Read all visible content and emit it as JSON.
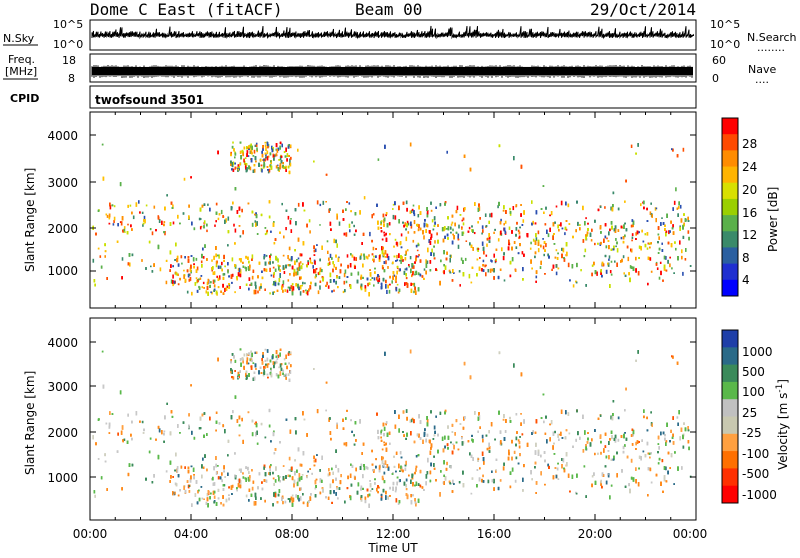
{
  "header": {
    "title": "Dome C East (fitACF)",
    "beam": "Beam 00",
    "date": "29/Oct/2014"
  },
  "noise_panel": {
    "left_label": "N.Sky",
    "right_label": "N.Search",
    "right_dots": "........",
    "left_ticks": [
      "10^5",
      "10^0"
    ],
    "right_ticks": [
      "10^5",
      "10^0"
    ]
  },
  "freq_panel": {
    "left_label": "Freq.",
    "left_unit": "[MHz]",
    "left_ticks": [
      "18",
      "8"
    ],
    "right_label": "Nave",
    "right_dots": "....",
    "right_ticks": [
      "60",
      "0"
    ]
  },
  "cpid_panel": {
    "label": "CPID",
    "text": "twofsound 3501"
  },
  "x_axis": {
    "label": "Time UT",
    "ticks": [
      "00:00",
      "04:00",
      "08:00",
      "12:00",
      "16:00",
      "20:00",
      "00:00"
    ]
  },
  "chart_data": [
    {
      "type": "heatmap",
      "name": "power",
      "ylabel": "Slant Range [km]",
      "yticks": [
        "4000",
        "3000",
        "2000",
        "1000"
      ],
      "ylim": [
        200,
        4500
      ],
      "xlim_hours": [
        0,
        24
      ],
      "colorbar_label": "Power [dB]",
      "colorbar_ticks": [
        "28",
        "24",
        "20",
        "16",
        "12",
        "8",
        "4"
      ],
      "colorbar_colors": [
        "#ff0000",
        "#ff4a00",
        "#ff8c00",
        "#ffb400",
        "#d8e000",
        "#9ad000",
        "#5ab04a",
        "#3a8a6a",
        "#2a5fa0",
        "#1f2fd0",
        "#0000ff"
      ]
    },
    {
      "type": "heatmap",
      "name": "velocity",
      "ylabel": "Slant Range [km]",
      "yticks": [
        "4000",
        "3000",
        "2000",
        "1000"
      ],
      "ylim": [
        200,
        4500
      ],
      "xlim_hours": [
        0,
        24
      ],
      "colorbar_label": "Velocity [m s",
      "colorbar_sup": "-1",
      "colorbar_ticks": [
        "1000",
        "500",
        "100",
        "25",
        "-25",
        "-100",
        "-500",
        "-1000"
      ],
      "colorbar_colors": [
        "#1f3fa8",
        "#2a6a88",
        "#3a8a5a",
        "#5ab84a",
        "#c0c0c0",
        "#c8c8b0",
        "#ffa040",
        "#ff7000",
        "#ff3000",
        "#ff0000"
      ]
    }
  ]
}
